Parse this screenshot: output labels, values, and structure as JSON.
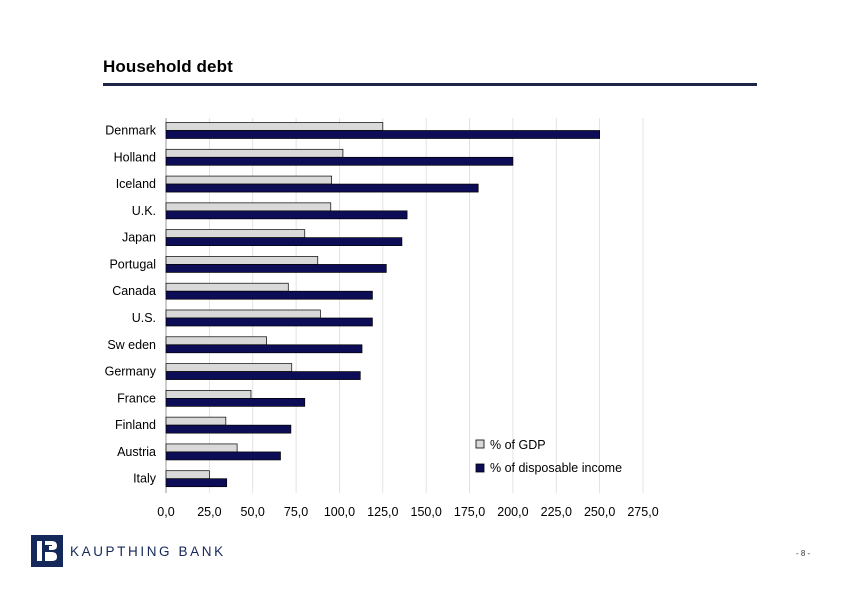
{
  "page": {
    "title": "Household debt",
    "page_number": "- 8 -",
    "brand": "KAUPTHING BANK"
  },
  "colors": {
    "gdp": "#d9d9d9",
    "disposable": "#0d0d57",
    "rule": "#1f2548",
    "gridline": "#dcdcdc",
    "brand": "#15285a"
  },
  "chart_data": {
    "type": "bar",
    "orientation": "horizontal",
    "title": "",
    "xlabel": "",
    "ylabel": "",
    "categories": [
      "Denmark",
      "Holland",
      "Iceland",
      "U.K.",
      "Japan",
      "Portugal",
      "Canada",
      "U.S.",
      "Sw eden",
      "Germany",
      "France",
      "Finland",
      "Austria",
      "Italy"
    ],
    "series": [
      {
        "name": "% of GDP",
        "values": [
          125,
          102,
          95.5,
          95,
          80,
          87.5,
          70.5,
          89,
          58,
          72.5,
          49,
          34.5,
          41,
          25
        ]
      },
      {
        "name": "% of disposable income",
        "values": [
          250,
          200,
          180,
          139,
          136,
          127,
          119,
          119,
          113,
          112,
          80,
          72,
          66,
          35
        ]
      }
    ],
    "xlim": [
      0,
      275
    ],
    "xticks": [
      "0,0",
      "25,0",
      "50,0",
      "75,0",
      "100,0",
      "125,0",
      "150,0",
      "175,0",
      "200,0",
      "225,0",
      "250,0",
      "275,0"
    ],
    "grid": "vertical",
    "legend_position": "bottom-right"
  }
}
